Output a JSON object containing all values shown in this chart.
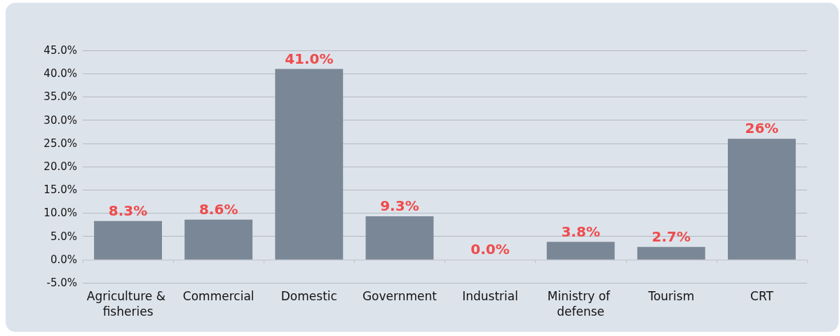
{
  "chart_data": {
    "type": "bar",
    "categories": [
      "Agriculture & fisheries",
      "Commercial",
      "Domestic",
      "Government",
      "Industrial",
      "Ministry of defense",
      "Tourism",
      "CRT"
    ],
    "values": [
      8.3,
      8.6,
      41.0,
      9.3,
      0.0,
      3.8,
      2.7,
      26
    ],
    "value_labels": [
      "8.3%",
      "8.6%",
      "41.0%",
      "9.3%",
      "0.0%",
      "3.8%",
      "2.7%",
      "26%"
    ],
    "color": "#7a8796",
    "ylim": [
      -5,
      45
    ],
    "yticks": [
      {
        "value": -5,
        "label": "-5.0%"
      },
      {
        "value": 0,
        "label": "0.0%"
      },
      {
        "value": 5,
        "label": "5.0%"
      },
      {
        "value": 10,
        "label": "10.0%"
      },
      {
        "value": 15,
        "label": "15.0%"
      },
      {
        "value": 20,
        "label": "20.0%"
      },
      {
        "value": 25,
        "label": "25.0%"
      },
      {
        "value": 30,
        "label": "30.0%"
      },
      {
        "value": 35,
        "label": "35.0%"
      },
      {
        "value": 40,
        "label": "40.0%"
      },
      {
        "value": 45,
        "label": "45.0%"
      }
    ],
    "grid": "y"
  }
}
